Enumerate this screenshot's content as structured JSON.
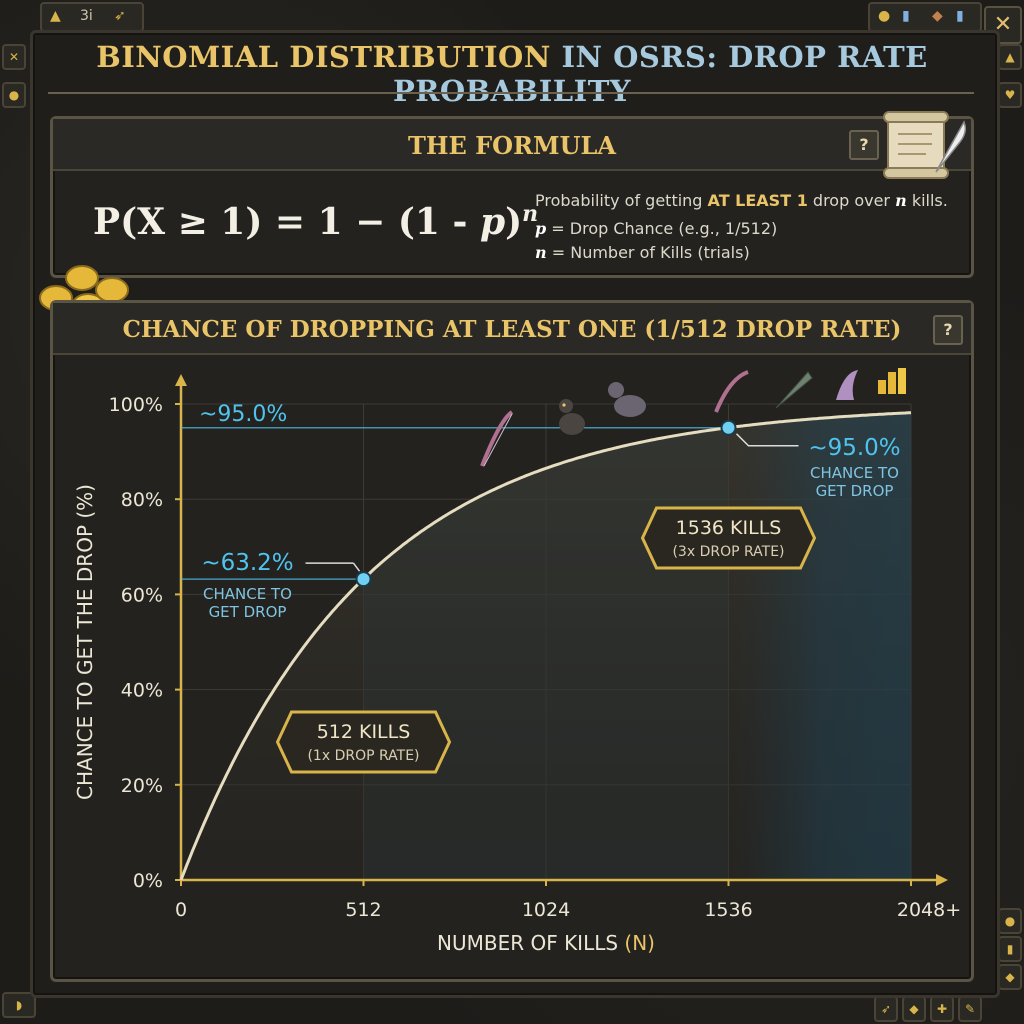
{
  "ui": {
    "title_part1": "BINOMIAL DISTRIBUTION",
    "title_part2": "IN OSRS: DROP RATE PROBABILITY",
    "formula_panel": {
      "title": "THE FORMULA",
      "help": "?",
      "formula_left": "P(X ≥ 1) = 1 − (1 - ",
      "formula_p": "p",
      "formula_close": ")",
      "formula_exp": "n",
      "desc_line1_pre": "Probability of getting ",
      "desc_line1_highlight": "AT LEAST 1",
      "desc_line1_mid": " drop over ",
      "desc_line1_var": "n",
      "desc_line1_post": " kills.",
      "desc_line2_var": "p",
      "desc_line2_text": " = Drop Chance (e.g., 1/512)",
      "desc_line3_var": "n",
      "desc_line3_text": " = Number of Kills (trials)"
    },
    "chart_panel": {
      "title": "CHANCE OF DROPPING AT LEAST ONE (1/512 DROP RATE)",
      "help": "?"
    },
    "topbar_left": "3i",
    "close": "✕"
  },
  "chart_data": {
    "type": "line",
    "title": "CHANCE OF DROPPING AT LEAST ONE (1/512 DROP RATE)",
    "drop_rate_denominator": 512,
    "xlabel_main": "NUMBER OF KILLS",
    "xlabel_var": "(N)",
    "ylabel": "CHANCE TO GET THE DROP (%)",
    "xlim": [
      0,
      2048
    ],
    "ylim": [
      0,
      100
    ],
    "x_ticks": [
      0,
      512,
      1024,
      1536,
      2048
    ],
    "x_tick_labels": [
      "0",
      "512",
      "1024",
      "1536",
      "2048+"
    ],
    "y_ticks": [
      0,
      20,
      40,
      60,
      80,
      100
    ],
    "y_tick_labels": [
      "0%",
      "20%",
      "40%",
      "60%",
      "80%",
      "100%"
    ],
    "grid": true,
    "series": [
      {
        "values_function": "1-(1-1/512)^n",
        "color": "#e6dcc0"
      }
    ],
    "markers": [
      {
        "x": 512,
        "y": 63.2,
        "value_label": "~63.2%",
        "sub1": "CHANCE TO",
        "sub2": "GET DROP",
        "box1": "512 KILLS",
        "box2": "(1x DROP RATE)"
      },
      {
        "x": 1536,
        "y": 95.0,
        "value_label": "~95.0%",
        "sub1": "CHANCE TO",
        "sub2": "GET DROP",
        "box1": "1536 KILLS",
        "box2": "(3x DROP RATE)"
      }
    ],
    "reference_line": {
      "y": 95.0,
      "label": "~95.0%"
    },
    "colors": {
      "accent_blue": "#4fc3ee",
      "gold": "#e9c468",
      "axis": "#d9b44a",
      "curve": "#e6dcc0"
    }
  }
}
